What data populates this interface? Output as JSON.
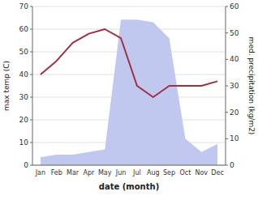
{
  "chart_data": {
    "type": "line",
    "xlabel": "date (month)",
    "ylabel": "max temp (C)",
    "y2label": "med. precipitation (kg/m2)",
    "categories": [
      "Jan",
      "Feb",
      "Mar",
      "Apr",
      "May",
      "Jun",
      "Jul",
      "Aug",
      "Sep",
      "Oct",
      "Nov",
      "Dec"
    ],
    "series": [
      {
        "type": "area",
        "axis": "y2",
        "color": "#c0c8f0",
        "values": [
          3,
          4,
          4,
          5,
          6,
          55,
          55,
          54,
          48,
          10,
          5,
          8
        ]
      },
      {
        "type": "line",
        "color": "#a03040",
        "values": [
          40,
          46,
          54,
          58,
          60,
          56,
          35,
          30,
          35,
          35,
          35,
          37
        ]
      }
    ],
    "ylim": [
      0,
      70
    ],
    "yticks": [
      0,
      10,
      20,
      30,
      40,
      50,
      60,
      70
    ],
    "y2lim": [
      0,
      60
    ],
    "y2ticks": [
      0,
      10,
      20,
      30,
      40,
      50,
      60
    ],
    "grid": true
  }
}
